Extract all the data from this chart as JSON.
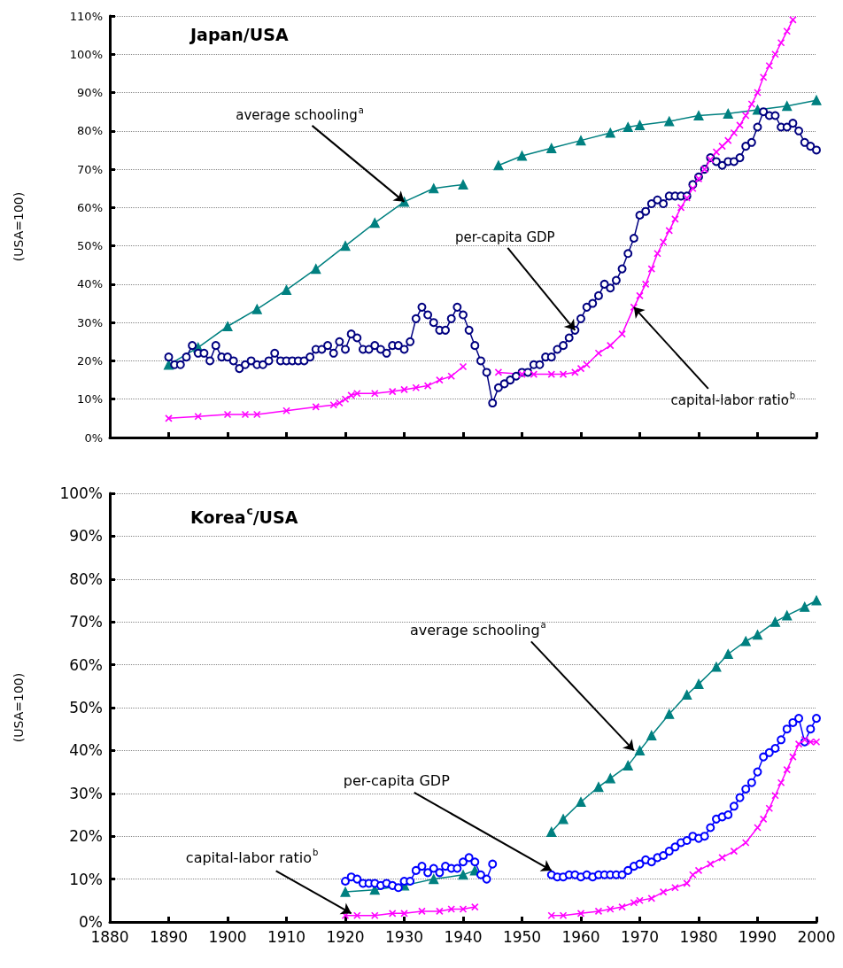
{
  "chart_data": [
    {
      "type": "line",
      "title": "Japan/USA",
      "ylabel": "(USA=100)",
      "xlim": [
        1880,
        2000
      ],
      "xticks": [
        1880,
        1890,
        1900,
        1910,
        1920,
        1930,
        1940,
        1950,
        1960,
        1970,
        1980,
        1990,
        2000
      ],
      "ylim": [
        0,
        110
      ],
      "yticks": [
        {
          "value": 0,
          "label": "0%"
        },
        {
          "value": 10,
          "label": "10%"
        },
        {
          "value": 20,
          "label": "20%"
        },
        {
          "value": 30,
          "label": "30%"
        },
        {
          "value": 40,
          "label": "40%"
        },
        {
          "value": 50,
          "label": "50%"
        },
        {
          "value": 60,
          "label": "60%"
        },
        {
          "value": 70,
          "label": "70%"
        },
        {
          "value": 80,
          "label": "80%"
        },
        {
          "value": 90,
          "label": "90%"
        },
        {
          "value": 100,
          "label": "100%"
        },
        {
          "value": 110,
          "label": "110%"
        }
      ],
      "grid": "y",
      "tick_labels": "y",
      "annotations": [
        {
          "text": "average schooling$^{a}$",
          "x": 1930,
          "y": 61.5
        },
        {
          "text": "per-capita GDP",
          "x": 1959,
          "y": 28
        },
        {
          "text": "capital-labor ratio$^{b}$",
          "x": 1969,
          "y": 34
        }
      ],
      "series": [
        {
          "color": "#008080",
          "marker": "triangle",
          "x": [
            1890,
            1895,
            1900,
            1905,
            1910,
            1915,
            1920,
            1925,
            1930,
            1935,
            1940,
            1943,
            1946,
            1950,
            1955,
            1960,
            1965,
            1968,
            1970,
            1975,
            1980,
            1985,
            1990,
            1995,
            2000
          ],
          "values": [
            19,
            23.5,
            29,
            33.5,
            38.5,
            44,
            50,
            56,
            61.5,
            65,
            66,
            null,
            71,
            73.5,
            75.5,
            77.5,
            79.5,
            81,
            81.5,
            82.5,
            84,
            84.5,
            85.5,
            86.5,
            88
          ]
        },
        {
          "color": "#000080",
          "marker": "circle",
          "x": [
            1890,
            1891,
            1892,
            1893,
            1894,
            1895,
            1896,
            1897,
            1898,
            1899,
            1900,
            1901,
            1902,
            1903,
            1904,
            1905,
            1906,
            1907,
            1908,
            1909,
            1910,
            1911,
            1912,
            1913,
            1914,
            1915,
            1916,
            1917,
            1918,
            1919,
            1920,
            1921,
            1922,
            1923,
            1924,
            1925,
            1926,
            1927,
            1928,
            1929,
            1930,
            1931,
            1932,
            1933,
            1934,
            1935,
            1936,
            1937,
            1938,
            1939,
            1940,
            1941,
            1942,
            1943,
            1944,
            1945,
            1946,
            1947,
            1948,
            1949,
            1950,
            1951,
            1952,
            1953,
            1954,
            1955,
            1956,
            1957,
            1958,
            1959,
            1960,
            1961,
            1962,
            1963,
            1964,
            1965,
            1966,
            1967,
            1968,
            1969,
            1970,
            1971,
            1972,
            1973,
            1974,
            1975,
            1976,
            1977,
            1978,
            1979,
            1980,
            1981,
            1982,
            1983,
            1984,
            1985,
            1986,
            1987,
            1988,
            1989,
            1990,
            1991,
            1992,
            1993,
            1994,
            1995,
            1996,
            1997,
            1998,
            1999,
            2000
          ],
          "values": [
            21,
            19,
            19,
            21,
            24,
            22,
            22,
            20,
            24,
            21,
            21,
            20,
            18,
            19,
            20,
            19,
            19,
            20,
            22,
            20,
            20,
            20,
            20,
            20,
            21,
            23,
            23,
            24,
            22,
            25,
            23,
            27,
            26,
            23,
            23,
            24,
            23,
            22,
            24,
            24,
            23,
            25,
            31,
            34,
            32,
            30,
            28,
            28,
            31,
            34,
            32,
            28,
            24,
            20,
            17,
            9,
            13,
            14,
            15,
            16,
            17,
            17,
            19,
            19,
            21,
            21,
            23,
            24,
            26,
            28,
            31,
            34,
            35,
            37,
            40,
            39,
            41,
            44,
            48,
            52,
            58,
            59,
            61,
            62,
            61,
            63,
            63,
            63,
            63,
            66,
            68,
            70,
            73,
            72,
            71,
            72,
            72,
            73,
            76,
            77,
            81,
            85,
            84,
            84,
            81,
            81,
            82,
            80,
            77,
            76,
            75
          ]
        },
        {
          "color": "#ff00ff",
          "marker": "cross",
          "x": [
            1890,
            1895,
            1900,
            1903,
            1905,
            1910,
            1915,
            1918,
            1919,
            1920,
            1921,
            1922,
            1925,
            1928,
            1930,
            1932,
            1934,
            1936,
            1938,
            1940,
            1943,
            1946,
            1950,
            1952,
            1955,
            1957,
            1959,
            1960,
            1961,
            1963,
            1965,
            1967,
            1969,
            1970,
            1971,
            1972,
            1973,
            1974,
            1975,
            1976,
            1977,
            1978,
            1979,
            1980,
            1981,
            1982,
            1983,
            1984,
            1985,
            1986,
            1987,
            1988,
            1989,
            1990,
            1991,
            1992,
            1993,
            1994,
            1995,
            1996
          ],
          "values": [
            5,
            5.5,
            6,
            6,
            6,
            7,
            8,
            8.5,
            9,
            10,
            11,
            11.5,
            11.5,
            12,
            12.5,
            13,
            13.5,
            15,
            16,
            18.5,
            null,
            17,
            16.5,
            16.5,
            16.5,
            16.5,
            17,
            18,
            19,
            22,
            24,
            27,
            34,
            37,
            40,
            44,
            48,
            51,
            54,
            57,
            60,
            62.5,
            65,
            67.5,
            70,
            72.5,
            74.5,
            76,
            77.5,
            79.5,
            81.5,
            84,
            87,
            90,
            94,
            97,
            100,
            103,
            106,
            109
          ]
        }
      ]
    },
    {
      "type": "line",
      "title": "Korea$^{c}$/USA",
      "ylabel": "(USA=100)",
      "xlim": [
        1880,
        2000
      ],
      "xticks": [
        1880,
        1890,
        1900,
        1910,
        1920,
        1930,
        1940,
        1950,
        1960,
        1970,
        1980,
        1990,
        2000
      ],
      "ylim": [
        0,
        100
      ],
      "yticks": [
        {
          "value": 0,
          "label": "0%"
        },
        {
          "value": 10,
          "label": "10%"
        },
        {
          "value": 20,
          "label": "20%"
        },
        {
          "value": 30,
          "label": "30%"
        },
        {
          "value": 40,
          "label": "40%"
        },
        {
          "value": 50,
          "label": "50%"
        },
        {
          "value": 60,
          "label": "60%"
        },
        {
          "value": 70,
          "label": "70%"
        },
        {
          "value": 80,
          "label": "80%"
        },
        {
          "value": 90,
          "label": "90%"
        },
        {
          "value": 100,
          "label": "100%"
        }
      ],
      "grid": "y",
      "annotations": [
        {
          "text": "average schooling$^{a}$",
          "x": 1969,
          "y": 40
        },
        {
          "text": "per-capita GDP",
          "x": 1955,
          "y": 12
        },
        {
          "text": "capital-labor ratio$^{b}$",
          "x": 1921,
          "y": 2
        }
      ],
      "series": [
        {
          "color": "#008080",
          "marker": "triangle",
          "x": [
            1920,
            1925,
            1930,
            1935,
            1940,
            1942,
            1950,
            1955,
            1957,
            1960,
            1963,
            1965,
            1968,
            1970,
            1972,
            1975,
            1978,
            1980,
            1983,
            1985,
            1988,
            1990,
            1993,
            1995,
            1998,
            2000
          ],
          "values": [
            7,
            7.5,
            8.5,
            10,
            11,
            12,
            null,
            21,
            24,
            28,
            31.5,
            33.5,
            36.5,
            40,
            43.5,
            48.5,
            53,
            55.5,
            59.5,
            62.5,
            65.5,
            67,
            70,
            71.5,
            73.5,
            75
          ]
        },
        {
          "color": "#0000ff",
          "marker": "circle",
          "x": [
            1920,
            1921,
            1922,
            1923,
            1924,
            1925,
            1926,
            1927,
            1928,
            1929,
            1930,
            1931,
            1932,
            1933,
            1934,
            1935,
            1936,
            1937,
            1938,
            1939,
            1940,
            1941,
            1942,
            1943,
            1944,
            1945,
            1950,
            1955,
            1956,
            1957,
            1958,
            1959,
            1960,
            1961,
            1962,
            1963,
            1964,
            1965,
            1966,
            1967,
            1968,
            1969,
            1970,
            1971,
            1972,
            1973,
            1974,
            1975,
            1976,
            1977,
            1978,
            1979,
            1980,
            1981,
            1982,
            1983,
            1984,
            1985,
            1986,
            1987,
            1988,
            1989,
            1990,
            1991,
            1992,
            1993,
            1994,
            1995,
            1996,
            1997,
            1998,
            1999,
            2000
          ],
          "values": [
            9.5,
            10.5,
            10,
            9,
            9,
            9,
            8.5,
            9,
            8.5,
            8,
            9.5,
            9.5,
            12,
            13,
            11.5,
            12.5,
            11.5,
            13,
            12.5,
            12.5,
            14,
            15,
            14,
            11,
            10,
            13.5,
            null,
            11,
            10.5,
            10.5,
            11,
            11,
            10.5,
            11,
            10.5,
            11,
            11,
            11,
            11,
            11,
            12,
            13,
            13.5,
            14.5,
            14,
            15,
            15.5,
            16.5,
            17.5,
            18.5,
            19,
            20,
            19.5,
            20,
            22,
            24,
            24.5,
            25,
            27,
            29,
            31,
            32.5,
            35,
            38.5,
            39.5,
            40.5,
            42.5,
            45,
            46.5,
            47.5,
            42,
            45,
            47.5
          ]
        },
        {
          "color": "#ff00ff",
          "marker": "cross",
          "x": [
            1920,
            1922,
            1925,
            1928,
            1930,
            1933,
            1936,
            1938,
            1940,
            1942,
            1950,
            1955,
            1957,
            1960,
            1963,
            1965,
            1967,
            1969,
            1970,
            1972,
            1974,
            1976,
            1978,
            1979,
            1980,
            1982,
            1984,
            1986,
            1988,
            1990,
            1991,
            1992,
            1993,
            1994,
            1995,
            1996,
            1997,
            1998,
            1999,
            2000
          ],
          "values": [
            1.5,
            1.5,
            1.5,
            2,
            2,
            2.5,
            2.5,
            3,
            3,
            3.5,
            null,
            1.5,
            1.5,
            2,
            2.5,
            3,
            3.5,
            4.5,
            5,
            5.5,
            7,
            8,
            9,
            11,
            12,
            13.5,
            15,
            16.5,
            18.5,
            22,
            24,
            26.5,
            29.5,
            32.5,
            35.5,
            38.5,
            41.5,
            42.5,
            42,
            42
          ]
        }
      ]
    }
  ]
}
